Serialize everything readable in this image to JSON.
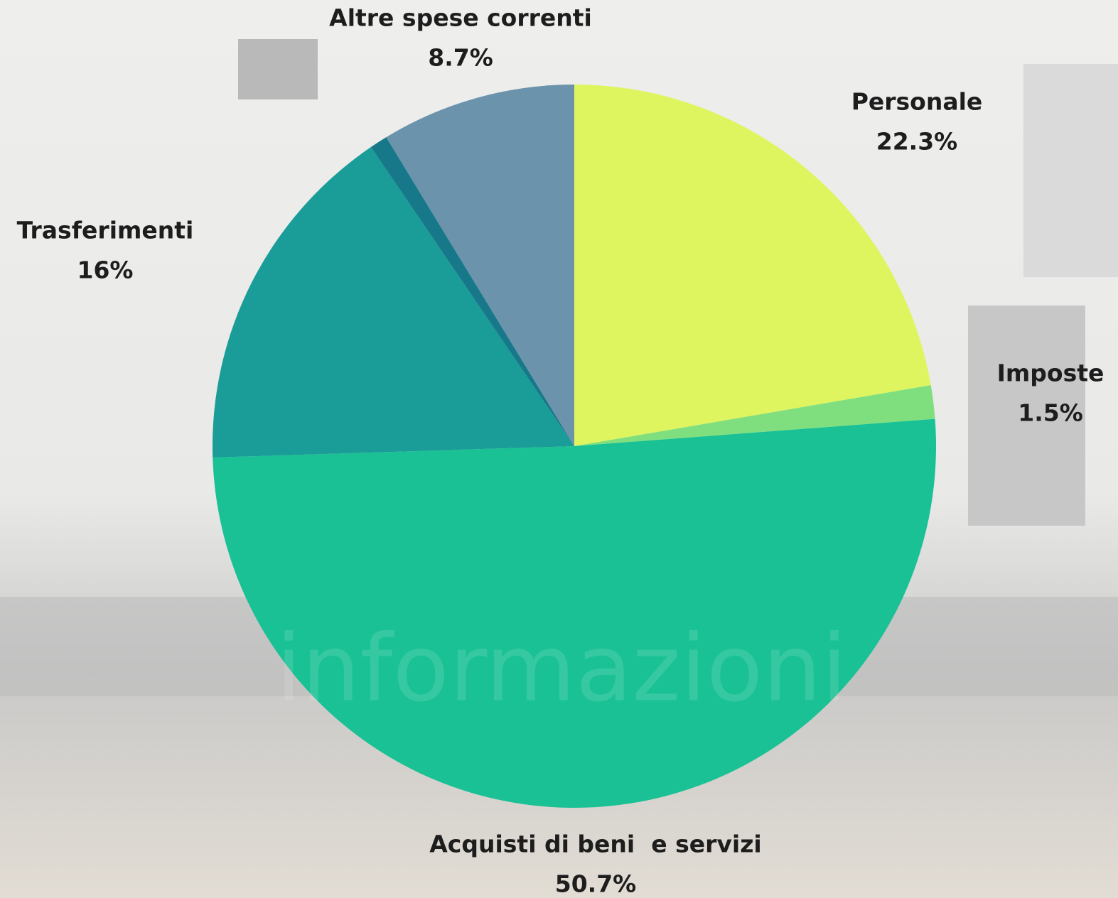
{
  "chart_data": {
    "type": "pie",
    "categories": [
      "Personale",
      "Imposte",
      "Acquisti di beni  e servizi",
      "Trasferimenti",
      null,
      "Altre spese correnti"
    ],
    "values": [
      22.3,
      1.5,
      50.7,
      16,
      0.8,
      8.7
    ],
    "value_labels": [
      "22.3%",
      "1.5%",
      "50.7%",
      "16%",
      null,
      "8.7%"
    ],
    "colors": [
      "#dff55f",
      "#7fdf7f",
      "#19c194",
      "#1a9c98",
      "#17788a",
      "#6b93ac"
    ]
  },
  "watermark": "informazioni"
}
